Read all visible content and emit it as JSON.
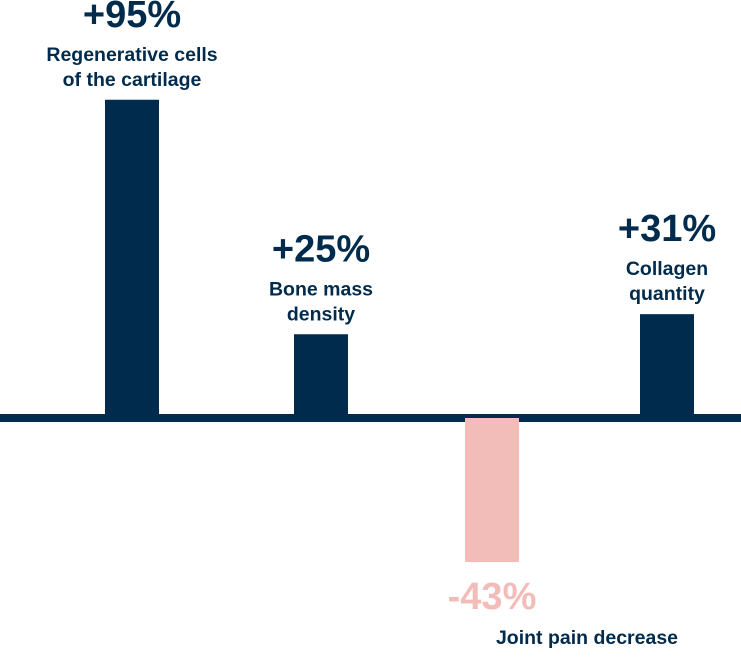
{
  "colors": {
    "positive": "#002B4C",
    "negative": "#F2BDB9",
    "baseline": "#002B4C",
    "background": "#FFFFFF"
  },
  "chart_data": {
    "type": "bar",
    "title": "",
    "xlabel": "",
    "ylabel": "",
    "unit": "%",
    "ylim": [
      -50,
      100
    ],
    "grid": false,
    "categories": [
      "Regenerative cells of the cartilage",
      "Bone mass density",
      "Joint pain decrease",
      "Collagen quantity"
    ],
    "values": [
      95,
      25,
      -43,
      31
    ],
    "value_labels": [
      "+95%",
      "+25%",
      "-43%",
      "+31%"
    ],
    "label_lines": [
      [
        "Regenerative cells",
        "of the cartilage"
      ],
      [
        "Bone mass",
        "density"
      ],
      [
        "Joint pain decrease"
      ],
      [
        "Collagen",
        "quantity"
      ]
    ]
  }
}
